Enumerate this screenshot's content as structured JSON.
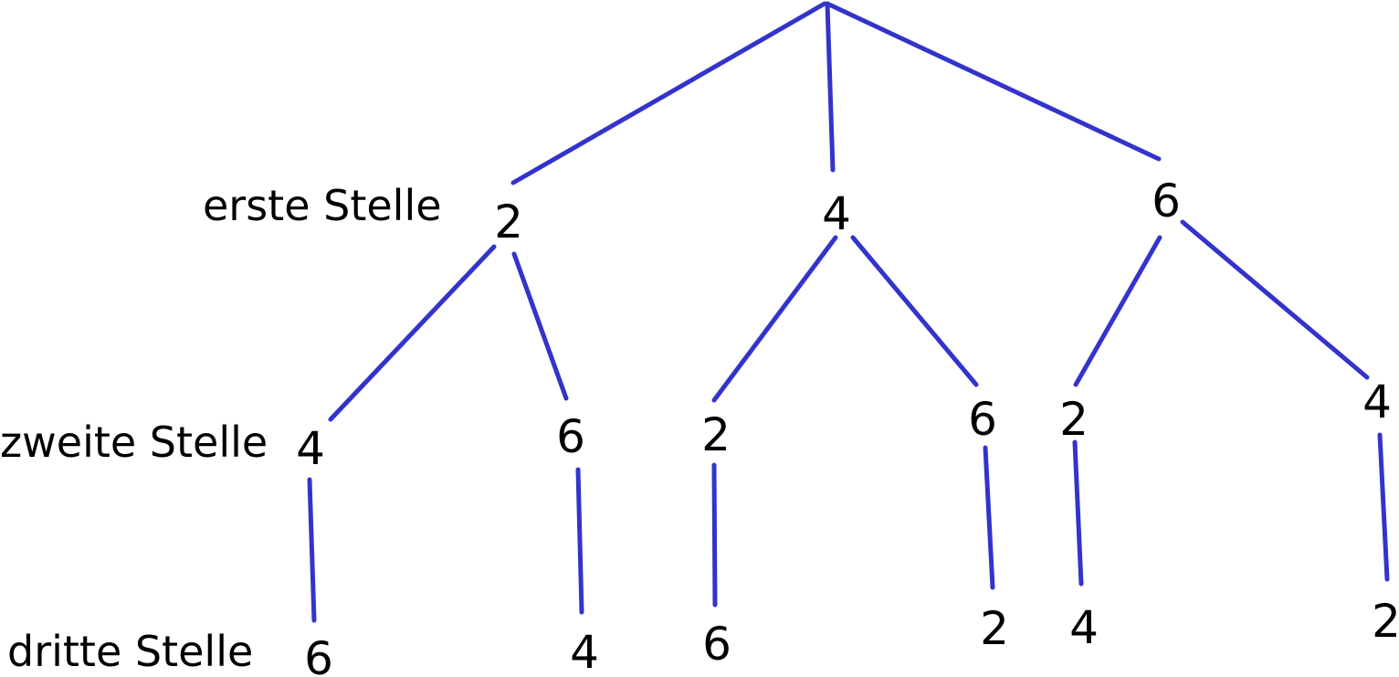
{
  "levels": {
    "first": "erste Stelle",
    "second": "zweite Stelle",
    "third": "dritte Stelle"
  },
  "tree": {
    "first": [
      "2",
      "4",
      "6"
    ],
    "second": [
      [
        "4",
        "6"
      ],
      [
        "2",
        "6"
      ],
      [
        "2",
        "4"
      ]
    ],
    "third": [
      [
        "6",
        "4"
      ],
      [
        "6",
        "2"
      ],
      [
        "4",
        "2"
      ]
    ]
  },
  "colors": {
    "edge": "#3333cc",
    "text": "#000000"
  }
}
